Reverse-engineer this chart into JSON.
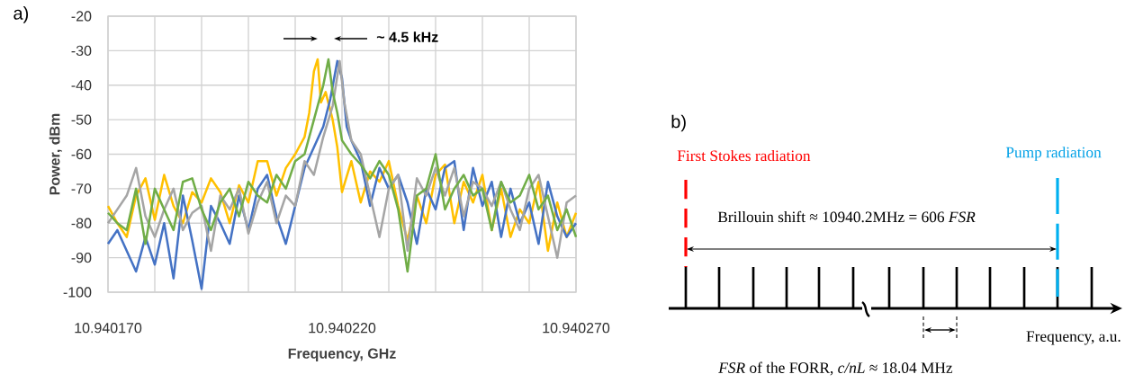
{
  "chart_data": [
    {
      "type": "line",
      "title": "a)",
      "xlabel": "Frequency, GHz",
      "ylabel": "Power, dBm",
      "xlim": [
        10.94017,
        10.94027
      ],
      "ylim": [
        -100,
        -20
      ],
      "xticks": [
        {
          "value": 10.94017,
          "label": "10.940170"
        },
        {
          "value": 10.94018,
          "label": null
        },
        {
          "value": 10.94019,
          "label": null
        },
        {
          "value": 10.9402,
          "label": null
        },
        {
          "value": 10.94021,
          "label": null
        },
        {
          "value": 10.94022,
          "label": "10.940220"
        },
        {
          "value": 10.94023,
          "label": null
        },
        {
          "value": 10.94024,
          "label": null
        },
        {
          "value": 10.94025,
          "label": null
        },
        {
          "value": 10.94026,
          "label": null
        },
        {
          "value": 10.94027,
          "label": "10.940270"
        }
      ],
      "yticks": [
        -20,
        -30,
        -40,
        -50,
        -60,
        -70,
        -80,
        -90,
        -100
      ],
      "grid": true,
      "annotations": [
        "~ 4.5 kHz"
      ],
      "series": [
        {
          "color": "#ffc000",
          "x": [
            10.94017,
            10.940172,
            10.940174,
            10.940176,
            10.940178,
            10.94018,
            10.940182,
            10.940184,
            10.940186,
            10.940188,
            10.94019,
            10.940192,
            10.940194,
            10.940196,
            10.940198,
            10.9402,
            10.940202,
            10.940204,
            10.940206,
            10.940208,
            10.94021,
            10.940212,
            10.940213,
            10.940214,
            10.9402148,
            10.9402155,
            10.9402165,
            10.940218,
            10.940219,
            10.94022,
            10.940222,
            10.940224,
            10.940226,
            10.940228,
            10.94023,
            10.940232,
            10.940234,
            10.940236,
            10.940238,
            10.94024,
            10.940242,
            10.940244,
            10.940246,
            10.940248,
            10.94025,
            10.940252,
            10.940254,
            10.940256,
            10.940258,
            10.94026,
            10.940262,
            10.940264,
            10.940266,
            10.940268,
            10.94027
          ],
          "values": [
            -75,
            -80,
            -84,
            -72,
            -67,
            -79,
            -66,
            -75,
            -80,
            -71,
            -74,
            -67,
            -71,
            -80,
            -69,
            -74,
            -62,
            -62,
            -72,
            -64,
            -60,
            -55,
            -48,
            -36,
            -32.5,
            -45,
            -42,
            -50,
            -58,
            -71,
            -62,
            -74,
            -65,
            -68,
            -62,
            -75,
            -85,
            -72,
            -80,
            -66,
            -63,
            -80,
            -68,
            -74,
            -66,
            -82,
            -70,
            -84,
            -76,
            -80,
            -68,
            -88,
            -74,
            -84,
            -77
          ]
        },
        {
          "color": "#4472c4",
          "x": [
            10.94017,
            10.940172,
            10.940174,
            10.940176,
            10.940178,
            10.94018,
            10.940182,
            10.940184,
            10.940186,
            10.940188,
            10.94019,
            10.940192,
            10.940194,
            10.940196,
            10.940198,
            10.9402,
            10.940202,
            10.940204,
            10.940206,
            10.940208,
            10.94021,
            10.940212,
            10.940214,
            10.940216,
            10.9402175,
            10.940219,
            10.94022,
            10.940221,
            10.940222,
            10.940224,
            10.940226,
            10.940228,
            10.94023,
            10.940232,
            10.940234,
            10.940236,
            10.940238,
            10.94024,
            10.940242,
            10.940244,
            10.940246,
            10.940248,
            10.94025,
            10.940252,
            10.940254,
            10.940256,
            10.940258,
            10.94026,
            10.940262,
            10.940264,
            10.940266,
            10.940268,
            10.94027
          ],
          "values": [
            -86,
            -82,
            -88,
            -94,
            -84,
            -92,
            -80,
            -96,
            -72,
            -85,
            -99,
            -75,
            -80,
            -86,
            -72,
            -82,
            -70,
            -66,
            -78,
            -86,
            -75,
            -64,
            -58,
            -52,
            -44,
            -33,
            -38,
            -52,
            -56,
            -62,
            -75,
            -64,
            -70,
            -66,
            -74,
            -86,
            -70,
            -76,
            -64,
            -62,
            -82,
            -64,
            -75,
            -68,
            -84,
            -70,
            -80,
            -74,
            -86,
            -68,
            -78,
            -84,
            -80
          ]
        },
        {
          "color": "#a5a5a5",
          "x": [
            10.94017,
            10.940172,
            10.940174,
            10.940176,
            10.940178,
            10.94018,
            10.940182,
            10.940184,
            10.940186,
            10.940188,
            10.94019,
            10.940192,
            10.940194,
            10.940196,
            10.940198,
            10.9402,
            10.940202,
            10.940204,
            10.940206,
            10.940208,
            10.94021,
            10.940212,
            10.940214,
            10.940216,
            10.940218,
            10.9402195,
            10.9402205,
            10.940222,
            10.940224,
            10.940226,
            10.940228,
            10.94023,
            10.940232,
            10.940234,
            10.940236,
            10.940238,
            10.94024,
            10.940242,
            10.940244,
            10.940246,
            10.940248,
            10.94025,
            10.940252,
            10.940254,
            10.940256,
            10.940258,
            10.94026,
            10.940262,
            10.940264,
            10.940266,
            10.940268,
            10.94027
          ],
          "values": [
            -80,
            -76,
            -72,
            -64,
            -78,
            -84,
            -76,
            -70,
            -82,
            -77,
            -75,
            -88,
            -72,
            -76,
            -70,
            -83,
            -74,
            -68,
            -80,
            -72,
            -75,
            -62,
            -66,
            -55,
            -46,
            -33,
            -45,
            -56,
            -60,
            -72,
            -84,
            -70,
            -66,
            -88,
            -67,
            -72,
            -64,
            -72,
            -64,
            -78,
            -68,
            -70,
            -75,
            -68,
            -76,
            -82,
            -70,
            -66,
            -78,
            -90,
            -74,
            -72
          ]
        },
        {
          "color": "#70ad47",
          "x": [
            10.94017,
            10.940172,
            10.940174,
            10.940176,
            10.940178,
            10.94018,
            10.940182,
            10.940184,
            10.940186,
            10.940188,
            10.94019,
            10.940192,
            10.940194,
            10.940196,
            10.940198,
            10.9402,
            10.940202,
            10.940204,
            10.940206,
            10.940208,
            10.94021,
            10.940212,
            10.940214,
            10.940216,
            10.9402171,
            10.940218,
            10.940219,
            10.94022,
            10.940222,
            10.940224,
            10.940226,
            10.940228,
            10.94023,
            10.940232,
            10.940234,
            10.940236,
            10.940238,
            10.94024,
            10.940242,
            10.940244,
            10.940246,
            10.940248,
            10.94025,
            10.940252,
            10.940254,
            10.940256,
            10.940258,
            10.94026,
            10.940262,
            10.940264,
            10.940266,
            10.940268,
            10.94027
          ],
          "values": [
            -77,
            -80,
            -82,
            -70,
            -86,
            -70,
            -76,
            -82,
            -68,
            -67,
            -76,
            -82,
            -74,
            -70,
            -78,
            -68,
            -72,
            -74,
            -66,
            -70,
            -62,
            -60,
            -50,
            -40,
            -32.5,
            -42,
            -48,
            -56,
            -60,
            -63,
            -67,
            -62,
            -66,
            -76,
            -94,
            -72,
            -70,
            -60,
            -76,
            -70,
            -66,
            -72,
            -70,
            -82,
            -68,
            -74,
            -72,
            -66,
            -76,
            -72,
            -82,
            -76,
            -84
          ]
        }
      ]
    },
    {
      "type": "other",
      "title": "b)",
      "annotations": [
        "First Stokes radiation",
        "Pump radiation",
        "Brillouin shift ≈ 10940.2MHz = 606 *FSR*",
        "Frequency, a.u.",
        "*FSR* of the FORR, *c/nL* ≈ 18.04 MHz"
      ]
    }
  ]
}
